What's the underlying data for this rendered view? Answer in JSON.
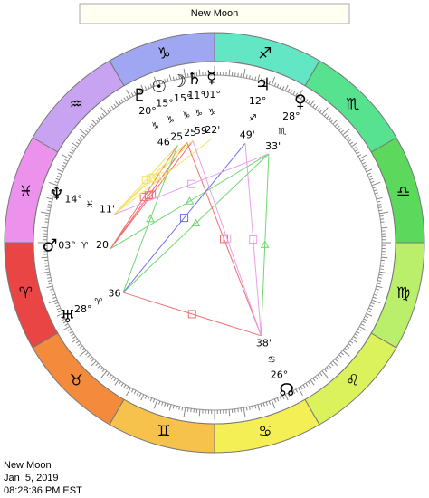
{
  "header": {
    "title": "New Moon"
  },
  "zodiac": [
    "♈",
    "♉",
    "♊",
    "♋",
    "♌",
    "♍",
    "♎",
    "♏",
    "♐",
    "♑",
    "♒",
    "♓"
  ],
  "planets": [
    {
      "glyph": "♇",
      "degree": "20°",
      "sign": "♑",
      "minutes": "46"
    },
    {
      "glyph": "☉",
      "degree": "15°",
      "sign": "♑",
      "minutes": "25"
    },
    {
      "glyph": "☽",
      "degree": "15°",
      "sign": "♑",
      "minutes": "25"
    },
    {
      "glyph": "♄",
      "degree": "11°",
      "sign": "♑",
      "minutes": "59"
    },
    {
      "glyph": "☿",
      "degree": "01°",
      "sign": "♑",
      "minutes": "22'"
    },
    {
      "glyph": "♃",
      "degree": "12°",
      "sign": "♐",
      "minutes": "49'"
    },
    {
      "glyph": "♀",
      "degree": "28°",
      "sign": "♏",
      "minutes": "33'"
    },
    {
      "glyph": "♆",
      "degree": "14°",
      "sign": "♓",
      "minutes": "11'"
    },
    {
      "glyph": "♂",
      "degree": "03°",
      "sign": "♈",
      "minutes": "20"
    },
    {
      "glyph": "♅",
      "degree": "28°",
      "sign": "♈",
      "minutes": "36"
    },
    {
      "glyph": "☊",
      "degree": "26°",
      "sign": "♋",
      "minutes": "38'"
    }
  ],
  "footer": {
    "event": "New Moon",
    "date": "Jan  5, 2019",
    "time": "08:28:36 PM EST"
  }
}
